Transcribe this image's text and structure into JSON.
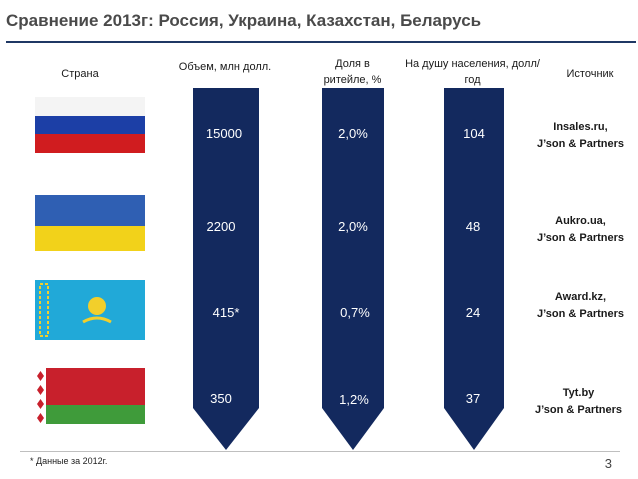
{
  "title": "Сравнение 2013г: Россия, Украина, Казахстан, Беларусь",
  "headers": {
    "country": "Страна",
    "volume": "Объем, млн долл.",
    "share": "Доля в ритейле, %",
    "per_capita": "На душу населения, долл/год",
    "source": "Источник"
  },
  "rows": [
    {
      "flag": "russia-flag",
      "volume": "15000",
      "share": "2,0%",
      "per_capita": "104",
      "source_line1": "Insales.ru,",
      "source_line2": "J’son & Partners"
    },
    {
      "flag": "ukraine-flag",
      "volume": "2200",
      "share": "2,0%",
      "per_capita": "48",
      "source_line1": "Aukro.ua,",
      "source_line2": "J’son & Partners"
    },
    {
      "flag": "kazakhstan-flag",
      "volume": "415*",
      "share": "0,7%",
      "per_capita": "24",
      "source_line1": "Award.kz,",
      "source_line2": "J’son & Partners"
    },
    {
      "flag": "belarus-flag",
      "volume": "350",
      "share": "1,2%",
      "per_capita": "37",
      "source_line1": "Tyt.by",
      "source_line2": "J’son & Partners"
    }
  ],
  "footnote": "* Данные за 2012г.",
  "page_number": "3",
  "colors": {
    "bar": "#13295e",
    "rule": "#1f3864"
  }
}
